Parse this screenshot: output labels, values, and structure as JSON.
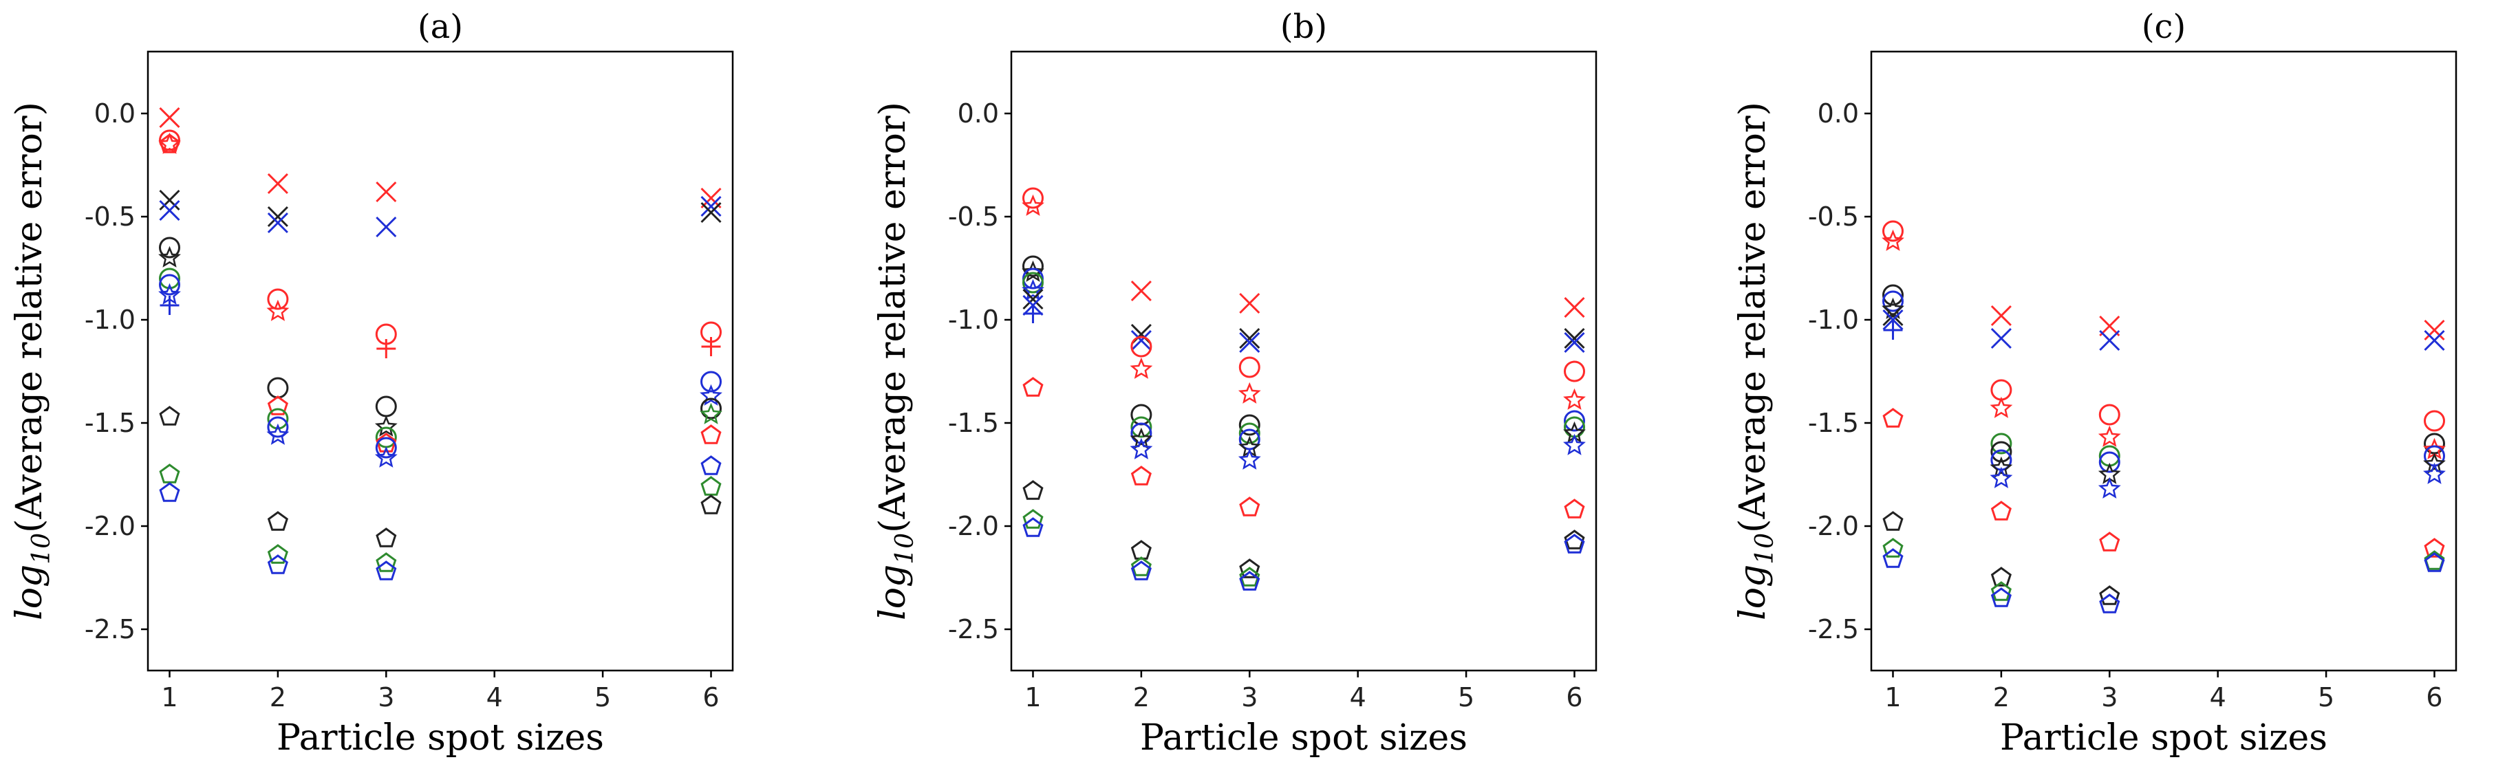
{
  "colors": {
    "red": "#ff2a2a",
    "black": "#222222",
    "blue": "#1f2fd6",
    "green": "#2e8b2e"
  },
  "marker_legend": {
    "x": "x-mark",
    "o": "circle",
    "p": "pentagon",
    "s": "star",
    "+": "plus"
  },
  "chart_data": [
    {
      "type": "scatter",
      "title": "(a)",
      "xlabel": "Particle spot sizes",
      "ylabel": "log10(Average relative error)",
      "ylabel_main": "log",
      "ylabel_sub": "10",
      "ylabel_rest": "(Average relative error)",
      "xlim": [
        0.8,
        6.2
      ],
      "ylim": [
        -2.7,
        0.3
      ],
      "xticks": [
        1,
        2,
        3,
        4,
        5,
        6
      ],
      "yticks": [
        0.0,
        -0.5,
        -1.0,
        -1.5,
        -2.0,
        -2.5
      ],
      "ytick_labels": [
        "0.0",
        "-0.5",
        "-1.0",
        "-1.5",
        "-2.0",
        "-2.5"
      ],
      "points": [
        {
          "x": 1,
          "y": -0.02,
          "m": "x",
          "c": "red"
        },
        {
          "x": 1,
          "y": -0.13,
          "m": "o",
          "c": "red"
        },
        {
          "x": 1,
          "y": -0.15,
          "m": "p",
          "c": "red"
        },
        {
          "x": 1,
          "y": -0.15,
          "m": "s",
          "c": "red"
        },
        {
          "x": 1,
          "y": -0.42,
          "m": "x",
          "c": "black"
        },
        {
          "x": 1,
          "y": -0.47,
          "m": "x",
          "c": "blue"
        },
        {
          "x": 1,
          "y": -0.65,
          "m": "o",
          "c": "black"
        },
        {
          "x": 1,
          "y": -0.7,
          "m": "s",
          "c": "black"
        },
        {
          "x": 1,
          "y": -0.8,
          "m": "o",
          "c": "green"
        },
        {
          "x": 1,
          "y": -0.83,
          "m": "o",
          "c": "blue"
        },
        {
          "x": 1,
          "y": -0.88,
          "m": "s",
          "c": "blue"
        },
        {
          "x": 1,
          "y": -0.93,
          "m": "+",
          "c": "blue"
        },
        {
          "x": 1,
          "y": -1.47,
          "m": "p",
          "c": "black"
        },
        {
          "x": 1,
          "y": -1.75,
          "m": "p",
          "c": "green"
        },
        {
          "x": 1,
          "y": -1.84,
          "m": "p",
          "c": "blue"
        },
        {
          "x": 2,
          "y": -0.34,
          "m": "x",
          "c": "red"
        },
        {
          "x": 2,
          "y": -0.5,
          "m": "x",
          "c": "black"
        },
        {
          "x": 2,
          "y": -0.53,
          "m": "x",
          "c": "blue"
        },
        {
          "x": 2,
          "y": -0.9,
          "m": "o",
          "c": "red"
        },
        {
          "x": 2,
          "y": -0.96,
          "m": "s",
          "c": "red"
        },
        {
          "x": 2,
          "y": -1.33,
          "m": "o",
          "c": "black"
        },
        {
          "x": 2,
          "y": -1.42,
          "m": "p",
          "c": "red"
        },
        {
          "x": 2,
          "y": -1.48,
          "m": "o",
          "c": "green"
        },
        {
          "x": 2,
          "y": -1.52,
          "m": "o",
          "c": "blue"
        },
        {
          "x": 2,
          "y": -1.56,
          "m": "s",
          "c": "blue"
        },
        {
          "x": 2,
          "y": -1.98,
          "m": "p",
          "c": "black"
        },
        {
          "x": 2,
          "y": -2.14,
          "m": "p",
          "c": "green"
        },
        {
          "x": 2,
          "y": -2.19,
          "m": "p",
          "c": "blue"
        },
        {
          "x": 3,
          "y": -0.38,
          "m": "x",
          "c": "red"
        },
        {
          "x": 3,
          "y": -0.55,
          "m": "x",
          "c": "blue"
        },
        {
          "x": 3,
          "y": -1.07,
          "m": "o",
          "c": "red"
        },
        {
          "x": 3,
          "y": -1.14,
          "m": "+",
          "c": "red"
        },
        {
          "x": 3,
          "y": -1.42,
          "m": "o",
          "c": "black"
        },
        {
          "x": 3,
          "y": -1.52,
          "m": "s",
          "c": "black"
        },
        {
          "x": 3,
          "y": -1.57,
          "m": "o",
          "c": "green"
        },
        {
          "x": 3,
          "y": -1.6,
          "m": "p",
          "c": "red"
        },
        {
          "x": 3,
          "y": -1.62,
          "m": "o",
          "c": "blue"
        },
        {
          "x": 3,
          "y": -1.67,
          "m": "s",
          "c": "blue"
        },
        {
          "x": 3,
          "y": -2.06,
          "m": "p",
          "c": "black"
        },
        {
          "x": 3,
          "y": -2.18,
          "m": "p",
          "c": "green"
        },
        {
          "x": 3,
          "y": -2.22,
          "m": "p",
          "c": "blue"
        },
        {
          "x": 6,
          "y": -0.41,
          "m": "x",
          "c": "red"
        },
        {
          "x": 6,
          "y": -0.45,
          "m": "x",
          "c": "blue"
        },
        {
          "x": 6,
          "y": -0.48,
          "m": "x",
          "c": "black"
        },
        {
          "x": 6,
          "y": -1.06,
          "m": "o",
          "c": "red"
        },
        {
          "x": 6,
          "y": -1.13,
          "m": "+",
          "c": "red"
        },
        {
          "x": 6,
          "y": -1.3,
          "m": "o",
          "c": "blue"
        },
        {
          "x": 6,
          "y": -1.37,
          "m": "s",
          "c": "blue"
        },
        {
          "x": 6,
          "y": -1.43,
          "m": "o",
          "c": "black"
        },
        {
          "x": 6,
          "y": -1.46,
          "m": "s",
          "c": "green"
        },
        {
          "x": 6,
          "y": -1.56,
          "m": "p",
          "c": "red"
        },
        {
          "x": 6,
          "y": -1.71,
          "m": "p",
          "c": "blue"
        },
        {
          "x": 6,
          "y": -1.81,
          "m": "p",
          "c": "green"
        },
        {
          "x": 6,
          "y": -1.9,
          "m": "p",
          "c": "black"
        }
      ]
    },
    {
      "type": "scatter",
      "title": "(b)",
      "xlabel": "Particle spot sizes",
      "ylabel": "log10(Average relative error)",
      "ylabel_main": "log",
      "ylabel_sub": "10",
      "ylabel_rest": "(Average relative error)",
      "xlim": [
        0.8,
        6.2
      ],
      "ylim": [
        -2.7,
        0.3
      ],
      "xticks": [
        1,
        2,
        3,
        4,
        5,
        6
      ],
      "yticks": [
        0.0,
        -0.5,
        -1.0,
        -1.5,
        -2.0,
        -2.5
      ],
      "ytick_labels": [
        "0.0",
        "-0.5",
        "-1.0",
        "-1.5",
        "-2.0",
        "-2.5"
      ],
      "points": [
        {
          "x": 1,
          "y": -0.41,
          "m": "o",
          "c": "red"
        },
        {
          "x": 1,
          "y": -0.45,
          "m": "s",
          "c": "red"
        },
        {
          "x": 1,
          "y": -0.74,
          "m": "o",
          "c": "black"
        },
        {
          "x": 1,
          "y": -0.77,
          "m": "s",
          "c": "black"
        },
        {
          "x": 1,
          "y": -0.8,
          "m": "o",
          "c": "blue"
        },
        {
          "x": 1,
          "y": -0.82,
          "m": "o",
          "c": "green"
        },
        {
          "x": 1,
          "y": -0.86,
          "m": "s",
          "c": "blue"
        },
        {
          "x": 1,
          "y": -0.9,
          "m": "x",
          "c": "black"
        },
        {
          "x": 1,
          "y": -0.93,
          "m": "x",
          "c": "blue"
        },
        {
          "x": 1,
          "y": -0.97,
          "m": "+",
          "c": "blue"
        },
        {
          "x": 1,
          "y": -1.33,
          "m": "p",
          "c": "red"
        },
        {
          "x": 1,
          "y": -1.83,
          "m": "p",
          "c": "black"
        },
        {
          "x": 1,
          "y": -1.97,
          "m": "p",
          "c": "green"
        },
        {
          "x": 1,
          "y": -2.01,
          "m": "p",
          "c": "blue"
        },
        {
          "x": 2,
          "y": -0.86,
          "m": "x",
          "c": "red"
        },
        {
          "x": 2,
          "y": -1.07,
          "m": "x",
          "c": "black"
        },
        {
          "x": 2,
          "y": -1.1,
          "m": "x",
          "c": "blue"
        },
        {
          "x": 2,
          "y": -1.13,
          "m": "o",
          "c": "red"
        },
        {
          "x": 2,
          "y": -1.24,
          "m": "s",
          "c": "red"
        },
        {
          "x": 2,
          "y": -1.46,
          "m": "o",
          "c": "black"
        },
        {
          "x": 2,
          "y": -1.52,
          "m": "o",
          "c": "green"
        },
        {
          "x": 2,
          "y": -1.55,
          "m": "o",
          "c": "blue"
        },
        {
          "x": 2,
          "y": -1.58,
          "m": "s",
          "c": "black"
        },
        {
          "x": 2,
          "y": -1.63,
          "m": "s",
          "c": "blue"
        },
        {
          "x": 2,
          "y": -1.76,
          "m": "p",
          "c": "red"
        },
        {
          "x": 2,
          "y": -2.12,
          "m": "p",
          "c": "black"
        },
        {
          "x": 2,
          "y": -2.2,
          "m": "p",
          "c": "green"
        },
        {
          "x": 2,
          "y": -2.22,
          "m": "p",
          "c": "blue"
        },
        {
          "x": 3,
          "y": -0.92,
          "m": "x",
          "c": "red"
        },
        {
          "x": 3,
          "y": -1.09,
          "m": "x",
          "c": "black"
        },
        {
          "x": 3,
          "y": -1.11,
          "m": "x",
          "c": "blue"
        },
        {
          "x": 3,
          "y": -1.23,
          "m": "o",
          "c": "red"
        },
        {
          "x": 3,
          "y": -1.36,
          "m": "s",
          "c": "red"
        },
        {
          "x": 3,
          "y": -1.51,
          "m": "o",
          "c": "black"
        },
        {
          "x": 3,
          "y": -1.55,
          "m": "o",
          "c": "green"
        },
        {
          "x": 3,
          "y": -1.58,
          "m": "o",
          "c": "blue"
        },
        {
          "x": 3,
          "y": -1.62,
          "m": "s",
          "c": "black"
        },
        {
          "x": 3,
          "y": -1.68,
          "m": "s",
          "c": "blue"
        },
        {
          "x": 3,
          "y": -1.91,
          "m": "p",
          "c": "red"
        },
        {
          "x": 3,
          "y": -2.21,
          "m": "p",
          "c": "black"
        },
        {
          "x": 3,
          "y": -2.25,
          "m": "p",
          "c": "green"
        },
        {
          "x": 3,
          "y": -2.27,
          "m": "p",
          "c": "blue"
        },
        {
          "x": 6,
          "y": -0.94,
          "m": "x",
          "c": "red"
        },
        {
          "x": 6,
          "y": -1.09,
          "m": "x",
          "c": "black"
        },
        {
          "x": 6,
          "y": -1.11,
          "m": "x",
          "c": "blue"
        },
        {
          "x": 6,
          "y": -1.25,
          "m": "o",
          "c": "red"
        },
        {
          "x": 6,
          "y": -1.39,
          "m": "s",
          "c": "red"
        },
        {
          "x": 6,
          "y": -1.49,
          "m": "o",
          "c": "blue"
        },
        {
          "x": 6,
          "y": -1.52,
          "m": "o",
          "c": "green"
        },
        {
          "x": 6,
          "y": -1.55,
          "m": "s",
          "c": "black"
        },
        {
          "x": 6,
          "y": -1.61,
          "m": "s",
          "c": "blue"
        },
        {
          "x": 6,
          "y": -1.92,
          "m": "p",
          "c": "red"
        },
        {
          "x": 6,
          "y": -2.07,
          "m": "p",
          "c": "black"
        },
        {
          "x": 6,
          "y": -2.09,
          "m": "p",
          "c": "blue"
        }
      ]
    },
    {
      "type": "scatter",
      "title": "(c)",
      "xlabel": "Particle spot sizes",
      "ylabel": "log10(Average relative error)",
      "ylabel_main": "log",
      "ylabel_sub": "10",
      "ylabel_rest": "(Average relative error)",
      "xlim": [
        0.8,
        6.2
      ],
      "ylim": [
        -2.7,
        0.3
      ],
      "xticks": [
        1,
        2,
        3,
        4,
        5,
        6
      ],
      "yticks": [
        0.0,
        -0.5,
        -1.0,
        -1.5,
        -2.0,
        -2.5
      ],
      "ytick_labels": [
        "0.0",
        "-0.5",
        "-1.0",
        "-1.5",
        "-2.0",
        "-2.5"
      ],
      "points": [
        {
          "x": 1,
          "y": -0.57,
          "m": "o",
          "c": "red"
        },
        {
          "x": 1,
          "y": -0.62,
          "m": "s",
          "c": "red"
        },
        {
          "x": 1,
          "y": -0.88,
          "m": "o",
          "c": "black"
        },
        {
          "x": 1,
          "y": -0.91,
          "m": "o",
          "c": "blue"
        },
        {
          "x": 1,
          "y": -0.95,
          "m": "s",
          "c": "black"
        },
        {
          "x": 1,
          "y": -0.98,
          "m": "x",
          "c": "black"
        },
        {
          "x": 1,
          "y": -1.0,
          "m": "x",
          "c": "blue"
        },
        {
          "x": 1,
          "y": -1.05,
          "m": "+",
          "c": "blue"
        },
        {
          "x": 1,
          "y": -1.48,
          "m": "p",
          "c": "red"
        },
        {
          "x": 1,
          "y": -1.98,
          "m": "p",
          "c": "black"
        },
        {
          "x": 1,
          "y": -2.11,
          "m": "p",
          "c": "green"
        },
        {
          "x": 1,
          "y": -2.16,
          "m": "p",
          "c": "blue"
        },
        {
          "x": 2,
          "y": -0.98,
          "m": "x",
          "c": "red"
        },
        {
          "x": 2,
          "y": -1.09,
          "m": "x",
          "c": "blue"
        },
        {
          "x": 2,
          "y": -1.34,
          "m": "o",
          "c": "red"
        },
        {
          "x": 2,
          "y": -1.43,
          "m": "s",
          "c": "red"
        },
        {
          "x": 2,
          "y": -1.6,
          "m": "o",
          "c": "green"
        },
        {
          "x": 2,
          "y": -1.64,
          "m": "o",
          "c": "black"
        },
        {
          "x": 2,
          "y": -1.68,
          "m": "o",
          "c": "blue"
        },
        {
          "x": 2,
          "y": -1.72,
          "m": "s",
          "c": "black"
        },
        {
          "x": 2,
          "y": -1.77,
          "m": "s",
          "c": "blue"
        },
        {
          "x": 2,
          "y": -1.93,
          "m": "p",
          "c": "red"
        },
        {
          "x": 2,
          "y": -2.25,
          "m": "p",
          "c": "black"
        },
        {
          "x": 2,
          "y": -2.32,
          "m": "p",
          "c": "green"
        },
        {
          "x": 2,
          "y": -2.35,
          "m": "p",
          "c": "blue"
        },
        {
          "x": 3,
          "y": -1.03,
          "m": "x",
          "c": "red"
        },
        {
          "x": 3,
          "y": -1.1,
          "m": "x",
          "c": "blue"
        },
        {
          "x": 3,
          "y": -1.46,
          "m": "o",
          "c": "red"
        },
        {
          "x": 3,
          "y": -1.57,
          "m": "s",
          "c": "red"
        },
        {
          "x": 3,
          "y": -1.66,
          "m": "o",
          "c": "green"
        },
        {
          "x": 3,
          "y": -1.69,
          "m": "o",
          "c": "blue"
        },
        {
          "x": 3,
          "y": -1.75,
          "m": "s",
          "c": "black"
        },
        {
          "x": 3,
          "y": -1.82,
          "m": "s",
          "c": "blue"
        },
        {
          "x": 3,
          "y": -2.08,
          "m": "p",
          "c": "red"
        },
        {
          "x": 3,
          "y": -2.34,
          "m": "p",
          "c": "black"
        },
        {
          "x": 3,
          "y": -2.38,
          "m": "p",
          "c": "blue"
        },
        {
          "x": 6,
          "y": -1.05,
          "m": "x",
          "c": "red"
        },
        {
          "x": 6,
          "y": -1.1,
          "m": "x",
          "c": "blue"
        },
        {
          "x": 6,
          "y": -1.49,
          "m": "o",
          "c": "red"
        },
        {
          "x": 6,
          "y": -1.6,
          "m": "o",
          "c": "black"
        },
        {
          "x": 6,
          "y": -1.63,
          "m": "s",
          "c": "red"
        },
        {
          "x": 6,
          "y": -1.66,
          "m": "o",
          "c": "blue"
        },
        {
          "x": 6,
          "y": -1.7,
          "m": "s",
          "c": "black"
        },
        {
          "x": 6,
          "y": -1.75,
          "m": "s",
          "c": "blue"
        },
        {
          "x": 6,
          "y": -2.11,
          "m": "p",
          "c": "red"
        },
        {
          "x": 6,
          "y": -2.17,
          "m": "p",
          "c": "green"
        },
        {
          "x": 6,
          "y": -2.18,
          "m": "p",
          "c": "blue"
        }
      ]
    }
  ]
}
